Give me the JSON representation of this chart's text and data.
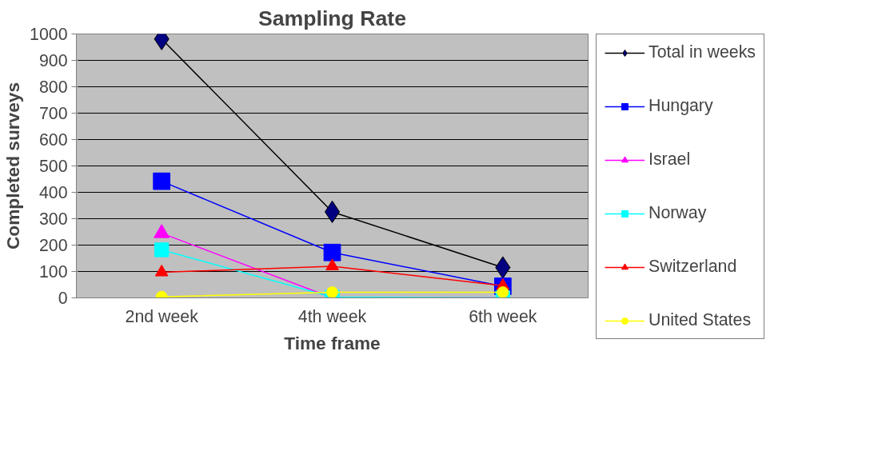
{
  "chart_data": {
    "type": "line",
    "title": "Sampling Rate",
    "xlabel": "Time frame",
    "ylabel": "Completed surveys",
    "categories": [
      "2nd week",
      "4th week",
      "6th week"
    ],
    "ylim": [
      0,
      1000
    ],
    "yticks": [
      0,
      100,
      200,
      300,
      400,
      500,
      600,
      700,
      800,
      900,
      1000
    ],
    "grid": "y",
    "legend": "right",
    "line_style": "solid",
    "series": [
      {
        "name": "Total in weeks",
        "color": "#000000",
        "marker": "diamond",
        "values": [
          981,
          326,
          115
        ]
      },
      {
        "name": "Hungary",
        "color": "#0000ff",
        "marker": "square",
        "values": [
          442,
          172,
          44
        ]
      },
      {
        "name": "Israel",
        "color": "#ff00ff",
        "marker": "triangle",
        "values": [
          245,
          0,
          0
        ]
      },
      {
        "name": "Norway",
        "color": "#00ffff",
        "marker": "square",
        "values": [
          182,
          3,
          0
        ]
      },
      {
        "name": "Switzerland",
        "color": "#ff0000",
        "marker": "triangle",
        "values": [
          97,
          120,
          46
        ]
      },
      {
        "name": "United States",
        "color": "#ffff00",
        "marker": "circle",
        "values": [
          4,
          21,
          21
        ]
      }
    ]
  }
}
